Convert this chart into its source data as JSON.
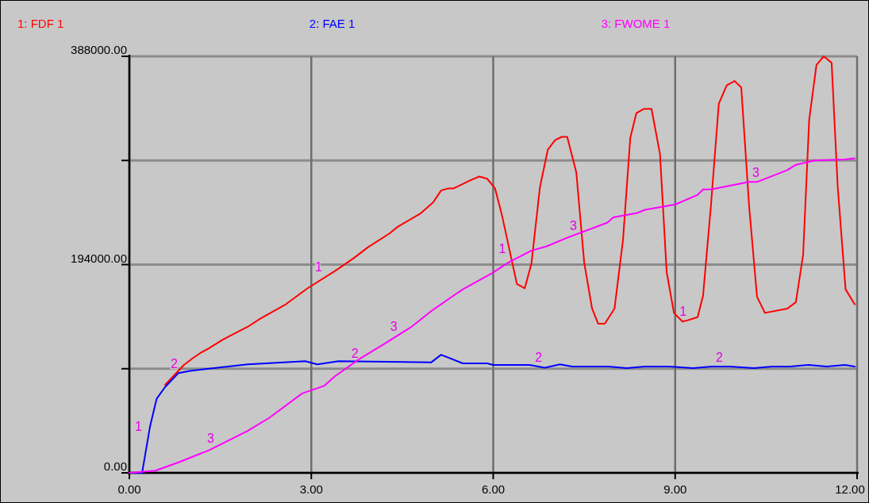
{
  "chart_data": {
    "type": "line",
    "xlim": [
      0,
      12
    ],
    "ylim": [
      0,
      388000
    ],
    "xticks": [
      {
        "value": 0,
        "label": "0.00"
      },
      {
        "value": 3,
        "label": "3.00"
      },
      {
        "value": 6,
        "label": "6.00"
      },
      {
        "value": 9,
        "label": "9.00"
      },
      {
        "value": 12,
        "label": "12.00"
      }
    ],
    "yticks": [
      {
        "value": 0,
        "label": "0.00"
      },
      {
        "value": 97000,
        "label": null
      },
      {
        "value": 194000,
        "label": "194000.00"
      },
      {
        "value": 291000,
        "label": null
      },
      {
        "value": 388000,
        "label": "388000.00"
      }
    ],
    "grid": true,
    "legend": "top",
    "line_style": "solid",
    "series": [
      {
        "name": "1: FDF 1",
        "color": "#ff0000",
        "x": [
          0.59,
          0.9,
          1.05,
          1.18,
          1.31,
          1.54,
          1.81,
          1.95,
          2.17,
          2.58,
          2.94,
          3.39,
          3.7,
          3.93,
          4.29,
          4.42,
          4.81,
          5.01,
          5.14,
          5.26,
          5.35,
          5.64,
          5.77,
          5.9,
          6.03,
          6.14,
          6.39,
          6.52,
          6.63,
          6.77,
          6.9,
          7.02,
          7.13,
          7.22,
          7.37,
          7.5,
          7.63,
          7.73,
          7.84,
          8.0,
          8.14,
          8.26,
          8.36,
          8.48,
          8.61,
          8.75,
          8.86,
          8.98,
          9.12,
          9.2,
          9.37,
          9.46,
          9.59,
          9.72,
          9.85,
          9.98,
          10.09,
          10.22,
          10.35,
          10.48,
          10.85,
          10.99,
          11.11,
          11.21,
          11.33,
          11.45,
          11.58,
          11.68,
          11.81,
          11.96
        ],
        "values": [
          82000,
          100500,
          107000,
          112000,
          116000,
          124000,
          132000,
          136000,
          144000,
          157000,
          172000,
          188000,
          200000,
          210000,
          223000,
          229000,
          242000,
          252000,
          263000,
          265000,
          265000,
          273000,
          276000,
          274000,
          265000,
          241000,
          176000,
          172000,
          195000,
          266000,
          301000,
          310000,
          313000,
          313000,
          280000,
          196000,
          153000,
          139000,
          139000,
          153000,
          217000,
          312000,
          335000,
          339000,
          339000,
          297000,
          187000,
          149000,
          141000,
          142000,
          145000,
          165000,
          249000,
          344000,
          361000,
          365000,
          359000,
          248000,
          164000,
          149000,
          153000,
          159000,
          203000,
          329000,
          380000,
          388000,
          382000,
          267000,
          171000,
          157000
        ]
      },
      {
        "name": "2: FAE 1",
        "color": "#0000ff",
        "x": [
          0.0,
          0.21,
          0.34,
          0.45,
          0.59,
          0.81,
          1.0,
          1.45,
          1.95,
          2.9,
          3.1,
          3.45,
          4.98,
          5.14,
          5.5,
          5.9,
          6.0,
          6.6,
          6.85,
          7.1,
          7.3,
          7.9,
          8.2,
          8.5,
          8.9,
          9.3,
          9.6,
          9.9,
          10.3,
          10.6,
          10.9,
          11.2,
          11.5,
          11.8,
          11.96
        ],
        "values": [
          0,
          0,
          43000,
          69000,
          80000,
          93000,
          95000,
          98000,
          101000,
          104000,
          101000,
          104000,
          103000,
          110000,
          102000,
          102000,
          100500,
          100500,
          98000,
          101000,
          99000,
          99000,
          97500,
          99000,
          99000,
          97500,
          99000,
          99000,
          97500,
          99000,
          99000,
          100500,
          99000,
          100500,
          99000
        ]
      },
      {
        "name": "3: FWOME 1",
        "color": "#ff00ff",
        "x": [
          0.0,
          0.43,
          0.82,
          1.31,
          1.95,
          2.3,
          2.85,
          3.21,
          3.39,
          3.79,
          4.2,
          4.65,
          5.01,
          5.29,
          5.5,
          5.82,
          5.98,
          6.25,
          6.63,
          6.88,
          7.22,
          7.88,
          7.98,
          8.37,
          8.5,
          9.0,
          9.37,
          9.46,
          9.59,
          10.22,
          10.35,
          10.85,
          10.99,
          11.3,
          11.8,
          11.96
        ],
        "values": [
          0,
          2000,
          10000,
          21000,
          39000,
          51000,
          74000,
          81000,
          90000,
          106000,
          120000,
          136000,
          152000,
          163000,
          171000,
          181000,
          186000,
          196000,
          207000,
          211000,
          219000,
          233000,
          238000,
          242000,
          245000,
          250000,
          259000,
          264000,
          264000,
          271000,
          271000,
          282000,
          287000,
          291000,
          292000,
          293000
        ]
      }
    ],
    "annotations": [
      {
        "text": "1",
        "x": 0.3,
        "y": 35000
      },
      {
        "text": "1",
        "x": 3.27,
        "y": 183000
      },
      {
        "text": "1",
        "x": 6.3,
        "y": 200000
      },
      {
        "text": "1",
        "x": 9.28,
        "y": 142000
      },
      {
        "text": "2",
        "x": 0.89,
        "y": 93000
      },
      {
        "text": "2",
        "x": 3.87,
        "y": 103000
      },
      {
        "text": "2",
        "x": 6.9,
        "y": 99000
      },
      {
        "text": "2",
        "x": 9.88,
        "y": 99000
      },
      {
        "text": "3",
        "x": 1.49,
        "y": 24000
      },
      {
        "text": "3",
        "x": 4.51,
        "y": 128000
      },
      {
        "text": "3",
        "x": 7.47,
        "y": 222000
      },
      {
        "text": "3",
        "x": 10.48,
        "y": 271000
      }
    ]
  }
}
